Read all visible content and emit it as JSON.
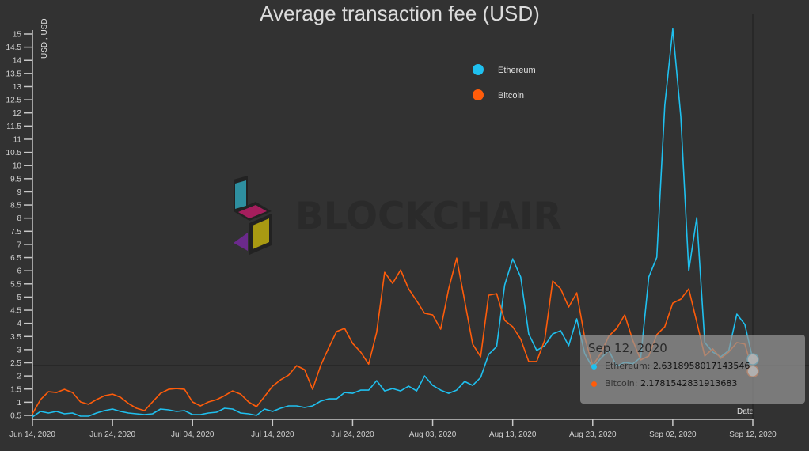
{
  "chart_data": {
    "type": "line",
    "title": "Average transaction fee (USD)",
    "xlabel": "Date",
    "ylabel": "USD , USD",
    "ylim": [
      0.5,
      15
    ],
    "yticks": [
      "0.5",
      "1",
      "1.5",
      "2",
      "2.5",
      "3",
      "3.5",
      "4",
      "4.5",
      "5",
      "5.5",
      "6",
      "6.5",
      "7",
      "7.5",
      "8",
      "8.5",
      "9",
      "9.5",
      "10",
      "10.5",
      "11",
      "11.5",
      "12",
      "12.5",
      "13",
      "13.5",
      "14",
      "14.5",
      "15"
    ],
    "xticks": [
      "Jun 14, 2020",
      "Jun 24, 2020",
      "Jul 04, 2020",
      "Jul 14, 2020",
      "Jul 24, 2020",
      "Aug 03, 2020",
      "Aug 13, 2020",
      "Aug 23, 2020",
      "Sep 02, 2020",
      "Sep 12, 2020"
    ],
    "legend_position": "top-right",
    "grid": false,
    "x": [
      "2020-06-14",
      "2020-06-15",
      "2020-06-16",
      "2020-06-17",
      "2020-06-18",
      "2020-06-19",
      "2020-06-20",
      "2020-06-21",
      "2020-06-22",
      "2020-06-23",
      "2020-06-24",
      "2020-06-25",
      "2020-06-26",
      "2020-06-27",
      "2020-06-28",
      "2020-06-29",
      "2020-06-30",
      "2020-07-01",
      "2020-07-02",
      "2020-07-03",
      "2020-07-04",
      "2020-07-05",
      "2020-07-06",
      "2020-07-07",
      "2020-07-08",
      "2020-07-09",
      "2020-07-10",
      "2020-07-11",
      "2020-07-12",
      "2020-07-13",
      "2020-07-14",
      "2020-07-15",
      "2020-07-16",
      "2020-07-17",
      "2020-07-18",
      "2020-07-19",
      "2020-07-20",
      "2020-07-21",
      "2020-07-22",
      "2020-07-23",
      "2020-07-24",
      "2020-07-25",
      "2020-07-26",
      "2020-07-27",
      "2020-07-28",
      "2020-07-29",
      "2020-07-30",
      "2020-07-31",
      "2020-08-01",
      "2020-08-02",
      "2020-08-03",
      "2020-08-04",
      "2020-08-05",
      "2020-08-06",
      "2020-08-07",
      "2020-08-08",
      "2020-08-09",
      "2020-08-10",
      "2020-08-11",
      "2020-08-12",
      "2020-08-13",
      "2020-08-14",
      "2020-08-15",
      "2020-08-16",
      "2020-08-17",
      "2020-08-18",
      "2020-08-19",
      "2020-08-20",
      "2020-08-21",
      "2020-08-22",
      "2020-08-23",
      "2020-08-24",
      "2020-08-25",
      "2020-08-26",
      "2020-08-27",
      "2020-08-28",
      "2020-08-29",
      "2020-08-30",
      "2020-08-31",
      "2020-09-01",
      "2020-09-02",
      "2020-09-03",
      "2020-09-04",
      "2020-09-05",
      "2020-09-06",
      "2020-09-07",
      "2020-09-08",
      "2020-09-09",
      "2020-09-10",
      "2020-09-11",
      "2020-09-12"
    ],
    "series": [
      {
        "name": "Ethereum",
        "color": "#1fc0ef",
        "values": [
          0.44,
          0.65,
          0.59,
          0.65,
          0.56,
          0.59,
          0.47,
          0.47,
          0.59,
          0.68,
          0.74,
          0.65,
          0.59,
          0.56,
          0.53,
          0.56,
          0.74,
          0.71,
          0.65,
          0.68,
          0.53,
          0.53,
          0.59,
          0.62,
          0.77,
          0.74,
          0.59,
          0.56,
          0.5,
          0.74,
          0.65,
          0.77,
          0.86,
          0.86,
          0.8,
          0.86,
          1.04,
          1.13,
          1.13,
          1.37,
          1.34,
          1.46,
          1.46,
          1.82,
          1.43,
          1.52,
          1.43,
          1.61,
          1.43,
          2.0,
          1.64,
          1.46,
          1.34,
          1.46,
          1.79,
          1.64,
          1.94,
          2.82,
          3.12,
          5.46,
          6.45,
          5.76,
          3.6,
          2.97,
          3.15,
          3.6,
          3.72,
          3.15,
          4.17,
          2.85,
          2.31,
          2.67,
          2.97,
          2.37,
          2.52,
          2.46,
          2.7,
          5.76,
          6.51,
          12.29,
          15.2,
          11.87,
          6.0,
          8.02,
          3.27,
          2.91,
          2.73,
          2.97,
          4.35,
          3.96,
          2.6318958017143546
        ]
      },
      {
        "name": "Bitcoin",
        "color": "#ff5c0a",
        "values": [
          0.56,
          1.1,
          1.4,
          1.37,
          1.49,
          1.37,
          1.01,
          0.92,
          1.1,
          1.25,
          1.31,
          1.19,
          0.95,
          0.77,
          0.68,
          1.01,
          1.34,
          1.49,
          1.52,
          1.49,
          1.01,
          0.86,
          1.01,
          1.1,
          1.25,
          1.43,
          1.31,
          1.01,
          0.83,
          1.22,
          1.61,
          1.85,
          2.03,
          2.39,
          2.24,
          1.49,
          2.39,
          3.06,
          3.69,
          3.81,
          3.24,
          2.91,
          2.45,
          3.66,
          5.94,
          5.52,
          6.03,
          5.31,
          4.86,
          4.38,
          4.32,
          3.78,
          5.31,
          6.48,
          4.86,
          3.21,
          2.73,
          5.07,
          5.13,
          4.11,
          3.87,
          3.4,
          2.55,
          2.55,
          3.36,
          5.61,
          5.31,
          4.62,
          5.16,
          3.45,
          2.4,
          2.85,
          3.51,
          3.81,
          4.32,
          3.36,
          2.61,
          2.76,
          3.57,
          3.87,
          4.77,
          4.92,
          5.31,
          4.05,
          2.76,
          3.03,
          2.67,
          2.91,
          3.27,
          3.21,
          2.1781542831913683
        ]
      }
    ]
  },
  "tooltip": {
    "date": "Sep 12, 2020",
    "rows": [
      {
        "label": "Ethereum:",
        "value": "2.6318958017143546",
        "color": "#1fc0ef"
      },
      {
        "label": "Bitcoin:",
        "value": "2.1781542831913683",
        "color": "#ff5c0a"
      }
    ]
  },
  "watermark": {
    "text": "BLOCKCHAIR"
  }
}
